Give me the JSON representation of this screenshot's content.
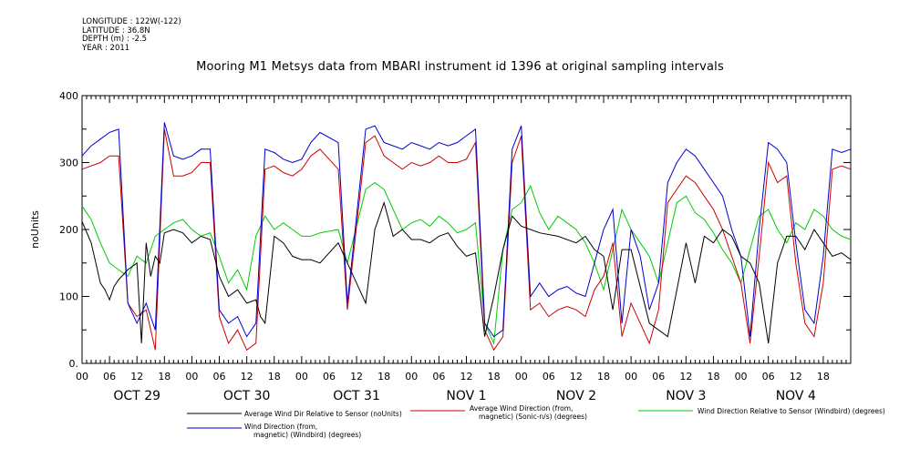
{
  "header": {
    "longitude": "LONGITUDE : 122W(-122)",
    "latitude": "LATITUDE : 36.8N",
    "depth": "DEPTH (m) : -2.5",
    "year": "YEAR : 2011"
  },
  "chart_data": {
    "type": "line",
    "title": "Mooring M1 Metsys data from MBARI instrument id 1396 at original sampling intervals",
    "ylabel": "noUnits",
    "xlabel": "",
    "ylim": [
      0,
      400
    ],
    "y_ticks": [
      "0.",
      "100",
      "200",
      "300",
      "400"
    ],
    "x_unit": "hours since OCT 29 00:00 (2011)",
    "x_range": [
      0,
      168
    ],
    "hour_tick_labels": [
      "00",
      "06",
      "12",
      "18"
    ],
    "day_labels": [
      "OCT 29",
      "OCT 30",
      "OCT 31",
      "NOV  1",
      "NOV  2",
      "NOV  3",
      "NOV  4"
    ],
    "grid": false,
    "legend_placement": "bottom",
    "series": [
      {
        "name": "Average Wind Dir Relative to Sensor (noUnits)",
        "color": "#000000",
        "x": [
          0,
          2,
          3,
          4,
          5,
          6,
          7,
          8,
          10,
          12,
          13,
          14,
          15,
          16,
          17,
          18,
          20,
          22,
          24,
          26,
          28,
          30,
          32,
          34,
          36,
          38,
          39,
          40,
          42,
          44,
          46,
          48,
          50,
          52,
          56,
          58,
          62,
          64,
          66,
          68,
          70,
          72,
          74,
          76,
          78,
          80,
          82,
          84,
          86,
          88,
          90,
          92,
          94,
          96,
          100,
          104,
          108,
          110,
          112,
          114,
          116,
          118,
          120,
          124,
          128,
          132,
          134,
          136,
          138,
          140,
          142,
          144,
          146,
          148,
          150,
          152,
          154,
          156,
          158,
          160,
          162,
          164,
          166,
          168
        ],
        "y": [
          212,
          180,
          150,
          120,
          110,
          95,
          115,
          125,
          140,
          150,
          30,
          180,
          130,
          160,
          150,
          195,
          200,
          195,
          180,
          190,
          185,
          130,
          100,
          110,
          90,
          95,
          70,
          60,
          190,
          180,
          160,
          155,
          155,
          150,
          180,
          150,
          90,
          200,
          240,
          190,
          200,
          185,
          185,
          180,
          190,
          195,
          175,
          160,
          165,
          40,
          100,
          170,
          220,
          205,
          195,
          190,
          180,
          190,
          170,
          160,
          80,
          170,
          170,
          60,
          40,
          180,
          120,
          190,
          180,
          200,
          190,
          160,
          150,
          120,
          30,
          150,
          190,
          190,
          170,
          200,
          180,
          160,
          165,
          155
        ]
      },
      {
        "name": "Average Wind Direction (from, magnetic) (Sonic-n/s) (degrees)",
        "color": "#cc0000",
        "x": [
          0,
          2,
          4,
          6,
          8,
          10,
          12,
          14,
          16,
          18,
          20,
          22,
          24,
          26,
          28,
          30,
          32,
          34,
          36,
          38,
          40,
          42,
          44,
          46,
          48,
          50,
          52,
          56,
          58,
          62,
          64,
          66,
          68,
          70,
          72,
          74,
          76,
          78,
          80,
          82,
          84,
          86,
          88,
          90,
          92,
          94,
          96,
          98,
          100,
          102,
          104,
          106,
          108,
          110,
          112,
          114,
          116,
          118,
          120,
          122,
          124,
          126,
          128,
          130,
          132,
          134,
          136,
          138,
          140,
          142,
          144,
          146,
          148,
          150,
          152,
          154,
          156,
          158,
          160,
          162,
          164,
          166,
          168
        ],
        "y": [
          290,
          295,
          300,
          310,
          310,
          90,
          70,
          80,
          20,
          350,
          280,
          280,
          285,
          300,
          300,
          70,
          30,
          50,
          20,
          30,
          290,
          295,
          285,
          280,
          290,
          310,
          320,
          290,
          80,
          330,
          340,
          310,
          300,
          290,
          300,
          295,
          300,
          310,
          300,
          300,
          305,
          330,
          50,
          20,
          40,
          300,
          340,
          80,
          90,
          70,
          80,
          85,
          80,
          70,
          110,
          130,
          180,
          40,
          90,
          60,
          30,
          80,
          240,
          260,
          280,
          270,
          250,
          230,
          200,
          160,
          120,
          30,
          160,
          300,
          270,
          280,
          150,
          60,
          40,
          120,
          290,
          295,
          290
        ]
      },
      {
        "name": "Wind Direction Relative to Sensor (Windbird) (degrees)",
        "color": "#00cc00",
        "x": [
          0,
          2,
          4,
          6,
          8,
          10,
          12,
          14,
          16,
          18,
          20,
          22,
          24,
          26,
          28,
          30,
          32,
          34,
          36,
          38,
          40,
          42,
          44,
          46,
          48,
          50,
          52,
          56,
          58,
          62,
          64,
          66,
          68,
          70,
          72,
          74,
          76,
          78,
          80,
          82,
          84,
          86,
          88,
          90,
          92,
          94,
          96,
          98,
          100,
          102,
          104,
          106,
          108,
          110,
          112,
          114,
          116,
          118,
          120,
          122,
          124,
          126,
          128,
          130,
          132,
          134,
          136,
          138,
          140,
          142,
          144,
          146,
          148,
          150,
          152,
          154,
          156,
          158,
          160,
          162,
          164,
          166,
          168
        ],
        "y": [
          235,
          215,
          180,
          150,
          140,
          130,
          160,
          150,
          190,
          200,
          210,
          215,
          200,
          190,
          195,
          160,
          120,
          140,
          110,
          190,
          220,
          200,
          210,
          200,
          190,
          190,
          195,
          200,
          150,
          260,
          270,
          260,
          230,
          200,
          210,
          215,
          205,
          220,
          210,
          195,
          200,
          210,
          60,
          30,
          170,
          230,
          240,
          265,
          225,
          200,
          220,
          210,
          200,
          180,
          150,
          110,
          170,
          230,
          200,
          180,
          160,
          120,
          180,
          240,
          250,
          225,
          215,
          195,
          170,
          150,
          120,
          170,
          220,
          230,
          200,
          180,
          210,
          200,
          230,
          220,
          200,
          190,
          185
        ]
      },
      {
        "name": "Wind Direction (from, magnetic) (Windbird) (degrees)",
        "color": "#0000cc",
        "x": [
          0,
          2,
          4,
          6,
          8,
          10,
          12,
          14,
          16,
          18,
          20,
          22,
          24,
          26,
          28,
          30,
          32,
          34,
          36,
          38,
          40,
          42,
          44,
          46,
          48,
          50,
          52,
          56,
          58,
          62,
          64,
          66,
          68,
          70,
          72,
          74,
          76,
          78,
          80,
          82,
          84,
          86,
          88,
          90,
          92,
          94,
          96,
          98,
          100,
          102,
          104,
          106,
          108,
          110,
          112,
          114,
          116,
          118,
          120,
          122,
          124,
          126,
          128,
          130,
          132,
          134,
          136,
          138,
          140,
          142,
          144,
          146,
          148,
          150,
          152,
          154,
          156,
          158,
          160,
          162,
          164,
          166,
          168
        ],
        "y": [
          310,
          325,
          335,
          345,
          350,
          90,
          60,
          90,
          50,
          360,
          310,
          305,
          310,
          320,
          320,
          80,
          60,
          70,
          40,
          60,
          320,
          315,
          305,
          300,
          305,
          330,
          345,
          330,
          90,
          350,
          355,
          330,
          325,
          320,
          330,
          325,
          320,
          330,
          325,
          330,
          340,
          350,
          60,
          40,
          50,
          320,
          355,
          100,
          120,
          100,
          110,
          115,
          105,
          100,
          150,
          200,
          230,
          60,
          200,
          160,
          80,
          120,
          270,
          300,
          320,
          310,
          290,
          270,
          250,
          200,
          160,
          40,
          200,
          330,
          320,
          300,
          180,
          80,
          60,
          160,
          320,
          315,
          320
        ]
      }
    ]
  },
  "legend": [
    {
      "line1": "Average Wind Dir Relative to Sensor (noUnits)",
      "line2": "",
      "color": "#000000"
    },
    {
      "line1": "Average Wind Direction (from,",
      "line2": "magnetic) (Sonic-n/s) (degrees)",
      "color": "#cc0000"
    },
    {
      "line1": "Wind Direction Relative to Sensor (Windbird) (degrees)",
      "line2": "",
      "color": "#00cc00"
    },
    {
      "line1": "Wind Direction (from,",
      "line2": "magnetic) (Windbird) (degrees)",
      "color": "#0000cc"
    }
  ]
}
